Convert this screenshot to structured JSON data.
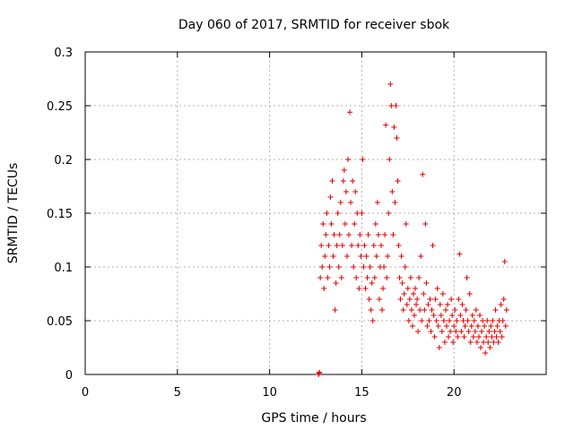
{
  "chart_data": {
    "type": "scatter",
    "title": "Day 060 of 2017, SRMTID for receiver sbok",
    "xlabel": "GPS time / hours",
    "ylabel": "SRMTID / TECUs",
    "xlim": [
      0,
      25
    ],
    "ylim": [
      0,
      0.3
    ],
    "xticks": [
      0,
      5,
      10,
      15,
      20
    ],
    "xtick_labels": [
      "0",
      "5",
      "10",
      "15",
      "20"
    ],
    "yticks": [
      0,
      0.05,
      0.1,
      0.15,
      0.2,
      0.25,
      0.3
    ],
    "ytick_labels": [
      "0",
      "0.05",
      "0.1",
      "0.15",
      "0.2",
      "0.25",
      "0.3"
    ],
    "grid": true,
    "marker": "+",
    "series": [
      {
        "name": "SRMTID",
        "color": "#e00000",
        "points": [
          [
            12.65,
            0.0
          ],
          [
            12.68,
            0.001
          ],
          [
            12.7,
            0.002
          ],
          [
            12.75,
            0.09
          ],
          [
            12.8,
            0.12
          ],
          [
            12.85,
            0.1
          ],
          [
            12.9,
            0.14
          ],
          [
            12.95,
            0.08
          ],
          [
            13.0,
            0.11
          ],
          [
            13.05,
            0.13
          ],
          [
            13.1,
            0.15
          ],
          [
            13.15,
            0.09
          ],
          [
            13.2,
            0.12
          ],
          [
            13.25,
            0.1
          ],
          [
            13.3,
            0.165
          ],
          [
            13.35,
            0.14
          ],
          [
            13.4,
            0.18
          ],
          [
            13.45,
            0.11
          ],
          [
            13.5,
            0.13
          ],
          [
            13.55,
            0.06
          ],
          [
            13.6,
            0.085
          ],
          [
            13.65,
            0.12
          ],
          [
            13.7,
            0.15
          ],
          [
            13.75,
            0.1
          ],
          [
            13.8,
            0.13
          ],
          [
            13.85,
            0.16
          ],
          [
            13.9,
            0.09
          ],
          [
            13.95,
            0.12
          ],
          [
            14.0,
            0.18
          ],
          [
            14.05,
            0.19
          ],
          [
            14.1,
            0.14
          ],
          [
            14.15,
            0.17
          ],
          [
            14.2,
            0.11
          ],
          [
            14.25,
            0.2
          ],
          [
            14.3,
            0.13
          ],
          [
            14.35,
            0.244
          ],
          [
            14.4,
            0.16
          ],
          [
            14.45,
            0.12
          ],
          [
            14.5,
            0.18
          ],
          [
            14.55,
            0.1
          ],
          [
            14.6,
            0.14
          ],
          [
            14.65,
            0.17
          ],
          [
            14.7,
            0.09
          ],
          [
            14.75,
            0.15
          ],
          [
            14.8,
            0.12
          ],
          [
            14.85,
            0.08
          ],
          [
            14.9,
            0.13
          ],
          [
            14.95,
            0.11
          ],
          [
            15.0,
            0.15
          ],
          [
            15.05,
            0.2
          ],
          [
            15.1,
            0.1
          ],
          [
            15.15,
            0.12
          ],
          [
            15.2,
            0.08
          ],
          [
            15.25,
            0.11
          ],
          [
            15.3,
            0.09
          ],
          [
            15.35,
            0.13
          ],
          [
            15.4,
            0.07
          ],
          [
            15.45,
            0.1
          ],
          [
            15.5,
            0.06
          ],
          [
            15.55,
            0.085
          ],
          [
            15.6,
            0.05
          ],
          [
            15.65,
            0.12
          ],
          [
            15.7,
            0.09
          ],
          [
            15.75,
            0.14
          ],
          [
            15.8,
            0.11
          ],
          [
            15.85,
            0.16
          ],
          [
            15.9,
            0.13
          ],
          [
            15.95,
            0.07
          ],
          [
            16.0,
            0.1
          ],
          [
            16.05,
            0.12
          ],
          [
            16.1,
            0.06
          ],
          [
            16.15,
            0.08
          ],
          [
            16.2,
            0.1
          ],
          [
            16.25,
            0.13
          ],
          [
            16.3,
            0.232
          ],
          [
            16.35,
            0.09
          ],
          [
            16.4,
            0.11
          ],
          [
            16.45,
            0.15
          ],
          [
            16.5,
            0.2
          ],
          [
            16.55,
            0.27
          ],
          [
            16.6,
            0.25
          ],
          [
            16.65,
            0.17
          ],
          [
            16.7,
            0.13
          ],
          [
            16.75,
            0.23
          ],
          [
            16.8,
            0.16
          ],
          [
            16.85,
            0.25
          ],
          [
            16.9,
            0.22
          ],
          [
            16.95,
            0.18
          ],
          [
            17.0,
            0.12
          ],
          [
            17.05,
            0.09
          ],
          [
            17.1,
            0.07
          ],
          [
            17.15,
            0.11
          ],
          [
            17.2,
            0.085
          ],
          [
            17.25,
            0.06
          ],
          [
            17.3,
            0.075
          ],
          [
            17.35,
            0.1
          ],
          [
            17.4,
            0.14
          ],
          [
            17.45,
            0.065
          ],
          [
            17.5,
            0.08
          ],
          [
            17.55,
            0.05
          ],
          [
            17.6,
            0.07
          ],
          [
            17.65,
            0.09
          ],
          [
            17.7,
            0.06
          ],
          [
            17.75,
            0.045
          ],
          [
            17.8,
            0.075
          ],
          [
            17.85,
            0.055
          ],
          [
            17.9,
            0.08
          ],
          [
            17.95,
            0.065
          ],
          [
            18.0,
            0.07
          ],
          [
            18.05,
            0.04
          ],
          [
            18.1,
            0.09
          ],
          [
            18.15,
            0.06
          ],
          [
            18.2,
            0.11
          ],
          [
            18.25,
            0.05
          ],
          [
            18.3,
            0.186
          ],
          [
            18.35,
            0.075
          ],
          [
            18.4,
            0.06
          ],
          [
            18.45,
            0.14
          ],
          [
            18.5,
            0.085
          ],
          [
            18.55,
            0.045
          ],
          [
            18.6,
            0.065
          ],
          [
            18.65,
            0.05
          ],
          [
            18.7,
            0.07
          ],
          [
            18.75,
            0.04
          ],
          [
            18.8,
            0.06
          ],
          [
            18.85,
            0.12
          ],
          [
            18.9,
            0.055
          ],
          [
            18.95,
            0.035
          ],
          [
            19.0,
            0.07
          ],
          [
            19.05,
            0.05
          ],
          [
            19.1,
            0.08
          ],
          [
            19.15,
            0.045
          ],
          [
            19.2,
            0.025
          ],
          [
            19.25,
            0.065
          ],
          [
            19.3,
            0.055
          ],
          [
            19.35,
            0.04
          ],
          [
            19.4,
            0.075
          ],
          [
            19.45,
            0.05
          ],
          [
            19.5,
            0.03
          ],
          [
            19.55,
            0.06
          ],
          [
            19.6,
            0.045
          ],
          [
            19.65,
            0.065
          ],
          [
            19.7,
            0.035
          ],
          [
            19.75,
            0.05
          ],
          [
            19.8,
            0.04
          ],
          [
            19.85,
            0.07
          ],
          [
            19.9,
            0.055
          ],
          [
            19.95,
            0.03
          ],
          [
            20.0,
            0.045
          ],
          [
            20.05,
            0.06
          ],
          [
            20.1,
            0.04
          ],
          [
            20.15,
            0.05
          ],
          [
            20.2,
            0.035
          ],
          [
            20.25,
            0.07
          ],
          [
            20.3,
            0.112
          ],
          [
            20.35,
            0.055
          ],
          [
            20.4,
            0.04
          ],
          [
            20.45,
            0.065
          ],
          [
            20.5,
            0.05
          ],
          [
            20.55,
            0.035
          ],
          [
            20.6,
            0.045
          ],
          [
            20.65,
            0.06
          ],
          [
            20.7,
            0.09
          ],
          [
            20.75,
            0.05
          ],
          [
            20.8,
            0.04
          ],
          [
            20.85,
            0.075
          ],
          [
            20.9,
            0.03
          ],
          [
            20.95,
            0.045
          ],
          [
            21.0,
            0.055
          ],
          [
            21.05,
            0.035
          ],
          [
            21.1,
            0.05
          ],
          [
            21.15,
            0.04
          ],
          [
            21.2,
            0.06
          ],
          [
            21.25,
            0.03
          ],
          [
            21.3,
            0.045
          ],
          [
            21.35,
            0.035
          ],
          [
            21.4,
            0.055
          ],
          [
            21.45,
            0.025
          ],
          [
            21.5,
            0.04
          ],
          [
            21.55,
            0.05
          ],
          [
            21.6,
            0.03
          ],
          [
            21.65,
            0.045
          ],
          [
            21.7,
            0.02
          ],
          [
            21.75,
            0.035
          ],
          [
            21.8,
            0.05
          ],
          [
            21.85,
            0.03
          ],
          [
            21.9,
            0.04
          ],
          [
            21.95,
            0.025
          ],
          [
            22.0,
            0.045
          ],
          [
            22.05,
            0.035
          ],
          [
            22.1,
            0.05
          ],
          [
            22.15,
            0.03
          ],
          [
            22.2,
            0.04
          ],
          [
            22.25,
            0.06
          ],
          [
            22.3,
            0.035
          ],
          [
            22.35,
            0.045
          ],
          [
            22.4,
            0.03
          ],
          [
            22.45,
            0.05
          ],
          [
            22.5,
            0.04
          ],
          [
            22.55,
            0.065
          ],
          [
            22.6,
            0.035
          ],
          [
            22.65,
            0.05
          ],
          [
            22.7,
            0.07
          ],
          [
            22.75,
            0.105
          ],
          [
            22.8,
            0.045
          ],
          [
            22.85,
            0.06
          ]
        ]
      }
    ]
  }
}
